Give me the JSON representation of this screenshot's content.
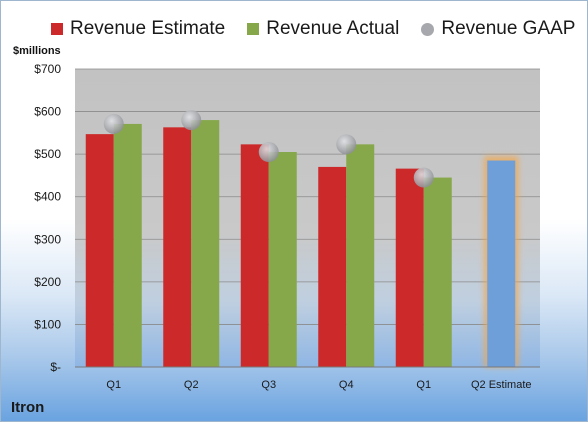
{
  "legend": {
    "estimate": "Revenue Estimate",
    "actual": "Revenue Actual",
    "gaap": "Revenue GAAP"
  },
  "unit_label": "$millions",
  "company": "Itron",
  "colors": {
    "estimate": "#cc2a2a",
    "actual": "#86a84a",
    "gaap": "#a6a8ad",
    "future_estimate": "#6f9fd8",
    "highlight": "#f3a64a"
  },
  "chart_data": {
    "type": "bar",
    "categories": [
      "Q1",
      "Q2",
      "Q3",
      "Q4",
      "Q1",
      "Q2 Estimate"
    ],
    "series": [
      {
        "name": "Revenue Estimate",
        "values": [
          547,
          563,
          523,
          470,
          466,
          null
        ]
      },
      {
        "name": "Revenue Actual",
        "values": [
          571,
          580,
          505,
          523,
          445,
          null
        ]
      },
      {
        "name": "Revenue GAAP",
        "values": [
          571,
          580,
          505,
          523,
          445,
          null
        ]
      },
      {
        "name": "Q2 Estimate",
        "values": [
          null,
          null,
          null,
          null,
          null,
          485
        ]
      }
    ],
    "yticks": [
      "$-",
      "$100",
      "$200",
      "$300",
      "$400",
      "$500",
      "$600",
      "$700"
    ],
    "ylim": [
      0,
      700
    ],
    "grid": true,
    "legend_position": "top"
  }
}
